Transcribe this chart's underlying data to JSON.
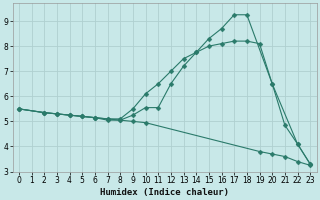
{
  "xlabel": "Humidex (Indice chaleur)",
  "background_color": "#c8e8e8",
  "grid_color": "#afd0d0",
  "line_color": "#2a7a6a",
  "xlim": [
    -0.5,
    23.5
  ],
  "ylim": [
    3.0,
    9.7
  ],
  "yticks": [
    3,
    4,
    5,
    6,
    7,
    8,
    9
  ],
  "xticks": [
    0,
    1,
    2,
    3,
    4,
    5,
    6,
    7,
    8,
    9,
    10,
    11,
    12,
    13,
    14,
    15,
    16,
    17,
    18,
    19,
    20,
    21,
    22,
    23
  ],
  "line1_x": [
    0,
    2,
    3,
    4,
    5,
    6,
    7,
    8,
    9,
    10,
    11,
    12,
    13,
    14,
    15,
    16,
    17,
    18,
    20,
    21,
    22,
    23
  ],
  "line1_y": [
    5.5,
    5.35,
    5.3,
    5.25,
    5.2,
    5.15,
    5.05,
    5.05,
    5.25,
    5.55,
    5.55,
    6.5,
    7.2,
    7.75,
    8.3,
    8.7,
    9.25,
    9.25,
    6.5,
    4.85,
    4.1,
    3.3
  ],
  "line2_x": [
    0,
    2,
    3,
    4,
    5,
    6,
    7,
    8,
    9,
    10,
    11,
    12,
    13,
    14,
    15,
    16,
    17,
    18,
    19,
    20,
    22,
    23
  ],
  "line2_y": [
    5.5,
    5.35,
    5.3,
    5.25,
    5.2,
    5.15,
    5.1,
    5.1,
    5.5,
    6.1,
    6.5,
    7.0,
    7.5,
    7.75,
    8.0,
    8.1,
    8.2,
    8.2,
    8.1,
    6.5,
    4.1,
    3.3
  ],
  "line3_x": [
    0,
    2,
    3,
    4,
    5,
    6,
    7,
    8,
    9,
    10,
    19,
    20,
    21,
    22,
    23
  ],
  "line3_y": [
    5.5,
    5.35,
    5.3,
    5.25,
    5.2,
    5.15,
    5.1,
    5.05,
    5.0,
    4.95,
    3.8,
    3.7,
    3.6,
    3.4,
    3.25
  ]
}
